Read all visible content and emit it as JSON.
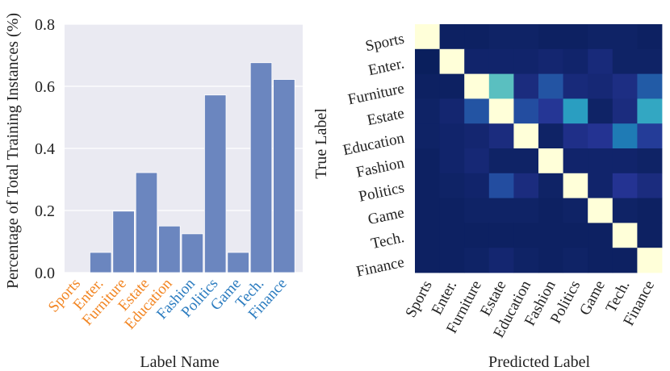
{
  "chart_data": [
    {
      "type": "bar",
      "categories": [
        "Sports",
        "Enter.",
        "Furniture",
        "Estate",
        "Education",
        "Fashion",
        "Politics",
        "Game",
        "Tech.",
        "Finance"
      ],
      "category_colors": [
        "#F28522",
        "#F28522",
        "#F28522",
        "#F28522",
        "#F28522",
        "#2A7BBF",
        "#2A7BBF",
        "#2A7BBF",
        "#2A7BBF",
        "#2A7BBF"
      ],
      "values": [
        0.0,
        0.065,
        0.198,
        0.322,
        0.15,
        0.125,
        0.572,
        0.065,
        0.676,
        0.622
      ],
      "ylim": [
        0,
        0.8
      ],
      "yticks": [
        "0.0",
        "0.2",
        "0.4",
        "0.6",
        "0.8"
      ],
      "ylabel": "Percentage of Total Training Instances (%)",
      "xlabel": "Label Name",
      "bar_color": "#6B86BF",
      "background": "#EAEAF2",
      "grid": true
    },
    {
      "type": "heatmap",
      "rows": [
        "Sports",
        "Enter.",
        "Furniture",
        "Estate",
        "Education",
        "Fashion",
        "Politics",
        "Game",
        "Tech.",
        "Finance"
      ],
      "cols": [
        "Sports",
        "Enter.",
        "Furniture",
        "Estate",
        "Education",
        "Fashion",
        "Politics",
        "Game",
        "Tech.",
        "Finance"
      ],
      "values": [
        [
          1.0,
          0.02,
          0.02,
          0.03,
          0.03,
          0.02,
          0.02,
          0.03,
          0.03,
          0.02
        ],
        [
          0.01,
          1.0,
          0.04,
          0.04,
          0.04,
          0.05,
          0.04,
          0.07,
          0.03,
          0.03
        ],
        [
          0.02,
          0.02,
          1.0,
          0.55,
          0.08,
          0.22,
          0.07,
          0.06,
          0.09,
          0.24
        ],
        [
          0.03,
          0.05,
          0.22,
          1.0,
          0.2,
          0.13,
          0.42,
          0.03,
          0.08,
          0.45
        ],
        [
          0.03,
          0.04,
          0.05,
          0.08,
          1.0,
          0.03,
          0.1,
          0.12,
          0.32,
          0.15
        ],
        [
          0.02,
          0.04,
          0.06,
          0.03,
          0.03,
          1.0,
          0.04,
          0.04,
          0.04,
          0.03
        ],
        [
          0.02,
          0.03,
          0.04,
          0.2,
          0.08,
          0.03,
          1.0,
          0.04,
          0.12,
          0.08
        ],
        [
          0.02,
          0.02,
          0.03,
          0.03,
          0.03,
          0.02,
          0.03,
          1.0,
          0.03,
          0.02
        ],
        [
          0.02,
          0.02,
          0.02,
          0.02,
          0.02,
          0.02,
          0.02,
          0.02,
          1.0,
          0.02
        ],
        [
          0.02,
          0.02,
          0.03,
          0.05,
          0.03,
          0.02,
          0.03,
          0.02,
          0.02,
          1.0
        ]
      ],
      "ylabel": "True Label",
      "xlabel": "Predicted Label",
      "colormap": "YlGnBu"
    }
  ]
}
